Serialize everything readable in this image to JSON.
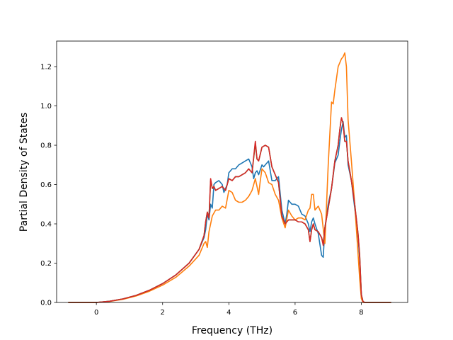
{
  "chart_data": {
    "type": "line",
    "title": "",
    "xlabel": "Frequency (THz)",
    "ylabel": "Partial Density of States",
    "xlim": [
      -1.2,
      9.4
    ],
    "ylim": [
      0.0,
      1.33
    ],
    "xticks": [
      0,
      2,
      4,
      6,
      8
    ],
    "xtick_labels": [
      "0",
      "2",
      "4",
      "6",
      "8"
    ],
    "yticks": [
      0.0,
      0.2,
      0.4,
      0.6,
      0.8,
      1.0,
      1.2
    ],
    "ytick_labels": [
      "0.0",
      "0.2",
      "0.4",
      "0.6",
      "0.8",
      "1.0",
      "1.2"
    ],
    "grid": false,
    "legend": "none",
    "series": [
      {
        "color": "#1f77b4",
        "points": [
          [
            -0.85,
            0
          ],
          [
            0,
            0
          ],
          [
            0.4,
            0.006
          ],
          [
            0.8,
            0.018
          ],
          [
            1.2,
            0.036
          ],
          [
            1.6,
            0.062
          ],
          [
            2.0,
            0.096
          ],
          [
            2.4,
            0.14
          ],
          [
            2.8,
            0.2
          ],
          [
            3.1,
            0.27
          ],
          [
            3.25,
            0.33
          ],
          [
            3.3,
            0.37
          ],
          [
            3.35,
            0.45
          ],
          [
            3.4,
            0.42
          ],
          [
            3.45,
            0.5
          ],
          [
            3.5,
            0.48
          ],
          [
            3.55,
            0.6
          ],
          [
            3.6,
            0.61
          ],
          [
            3.7,
            0.62
          ],
          [
            3.8,
            0.6
          ],
          [
            3.85,
            0.56
          ],
          [
            3.9,
            0.58
          ],
          [
            3.95,
            0.6
          ],
          [
            4.0,
            0.66
          ],
          [
            4.1,
            0.68
          ],
          [
            4.2,
            0.68
          ],
          [
            4.3,
            0.7
          ],
          [
            4.4,
            0.71
          ],
          [
            4.5,
            0.72
          ],
          [
            4.6,
            0.73
          ],
          [
            4.7,
            0.69
          ],
          [
            4.75,
            0.63
          ],
          [
            4.8,
            0.66
          ],
          [
            4.85,
            0.67
          ],
          [
            4.9,
            0.65
          ],
          [
            5.0,
            0.7
          ],
          [
            5.05,
            0.69
          ],
          [
            5.1,
            0.7
          ],
          [
            5.2,
            0.72
          ],
          [
            5.3,
            0.62
          ],
          [
            5.4,
            0.62
          ],
          [
            5.5,
            0.64
          ],
          [
            5.6,
            0.47
          ],
          [
            5.7,
            0.4
          ],
          [
            5.75,
            0.45
          ],
          [
            5.8,
            0.52
          ],
          [
            5.9,
            0.5
          ],
          [
            6.0,
            0.5
          ],
          [
            6.1,
            0.49
          ],
          [
            6.2,
            0.45
          ],
          [
            6.3,
            0.44
          ],
          [
            6.4,
            0.4
          ],
          [
            6.45,
            0.36
          ],
          [
            6.5,
            0.41
          ],
          [
            6.55,
            0.43
          ],
          [
            6.6,
            0.4
          ],
          [
            6.7,
            0.35
          ],
          [
            6.8,
            0.24
          ],
          [
            6.85,
            0.23
          ],
          [
            6.9,
            0.38
          ],
          [
            7.0,
            0.5
          ],
          [
            7.1,
            0.58
          ],
          [
            7.2,
            0.71
          ],
          [
            7.3,
            0.75
          ],
          [
            7.35,
            0.82
          ],
          [
            7.4,
            0.88
          ],
          [
            7.45,
            0.92
          ],
          [
            7.5,
            0.84
          ],
          [
            7.55,
            0.85
          ],
          [
            7.6,
            0.7
          ],
          [
            7.7,
            0.62
          ],
          [
            7.8,
            0.48
          ],
          [
            7.9,
            0.34
          ],
          [
            7.95,
            0.22
          ],
          [
            8.0,
            0.04
          ],
          [
            8.05,
            0.005
          ],
          [
            8.1,
            0
          ],
          [
            8.9,
            0
          ]
        ]
      },
      {
        "color": "#ff7f0e",
        "points": [
          [
            -0.85,
            0
          ],
          [
            0,
            0
          ],
          [
            0.4,
            0.005
          ],
          [
            0.8,
            0.016
          ],
          [
            1.2,
            0.033
          ],
          [
            1.6,
            0.057
          ],
          [
            2.0,
            0.088
          ],
          [
            2.4,
            0.128
          ],
          [
            2.8,
            0.185
          ],
          [
            3.1,
            0.24
          ],
          [
            3.25,
            0.3
          ],
          [
            3.3,
            0.31
          ],
          [
            3.35,
            0.28
          ],
          [
            3.4,
            0.36
          ],
          [
            3.5,
            0.44
          ],
          [
            3.6,
            0.47
          ],
          [
            3.7,
            0.47
          ],
          [
            3.8,
            0.49
          ],
          [
            3.9,
            0.48
          ],
          [
            4.0,
            0.57
          ],
          [
            4.1,
            0.56
          ],
          [
            4.2,
            0.52
          ],
          [
            4.3,
            0.51
          ],
          [
            4.4,
            0.51
          ],
          [
            4.5,
            0.52
          ],
          [
            4.6,
            0.54
          ],
          [
            4.7,
            0.57
          ],
          [
            4.8,
            0.63
          ],
          [
            4.85,
            0.59
          ],
          [
            4.9,
            0.55
          ],
          [
            4.95,
            0.62
          ],
          [
            5.0,
            0.68
          ],
          [
            5.1,
            0.66
          ],
          [
            5.2,
            0.61
          ],
          [
            5.3,
            0.6
          ],
          [
            5.4,
            0.55
          ],
          [
            5.5,
            0.52
          ],
          [
            5.6,
            0.43
          ],
          [
            5.7,
            0.38
          ],
          [
            5.8,
            0.47
          ],
          [
            5.9,
            0.44
          ],
          [
            6.0,
            0.42
          ],
          [
            6.1,
            0.43
          ],
          [
            6.2,
            0.43
          ],
          [
            6.3,
            0.42
          ],
          [
            6.4,
            0.47
          ],
          [
            6.45,
            0.48
          ],
          [
            6.5,
            0.55
          ],
          [
            6.55,
            0.55
          ],
          [
            6.6,
            0.47
          ],
          [
            6.7,
            0.49
          ],
          [
            6.8,
            0.45
          ],
          [
            6.9,
            0.3
          ],
          [
            7.0,
            0.7
          ],
          [
            7.1,
            1.02
          ],
          [
            7.15,
            1.01
          ],
          [
            7.2,
            1.08
          ],
          [
            7.3,
            1.2
          ],
          [
            7.4,
            1.24
          ],
          [
            7.45,
            1.25
          ],
          [
            7.5,
            1.27
          ],
          [
            7.55,
            1.2
          ],
          [
            7.6,
            0.93
          ],
          [
            7.7,
            0.72
          ],
          [
            7.8,
            0.5
          ],
          [
            7.9,
            0.25
          ],
          [
            7.95,
            0.12
          ],
          [
            8.0,
            0.02
          ],
          [
            8.05,
            0
          ],
          [
            8.9,
            0
          ]
        ]
      },
      {
        "color": "#2ca02c",
        "points": [
          [
            -0.85,
            0
          ],
          [
            0,
            0
          ],
          [
            0.4,
            0.006
          ],
          [
            0.8,
            0.018
          ],
          [
            1.2,
            0.036
          ],
          [
            1.6,
            0.062
          ],
          [
            2.0,
            0.096
          ],
          [
            2.4,
            0.14
          ],
          [
            2.8,
            0.2
          ],
          [
            3.1,
            0.27
          ],
          [
            3.25,
            0.34
          ],
          [
            3.3,
            0.41
          ],
          [
            3.35,
            0.46
          ],
          [
            3.4,
            0.43
          ],
          [
            3.45,
            0.62
          ],
          [
            3.5,
            0.58
          ],
          [
            3.55,
            0.59
          ],
          [
            3.6,
            0.57
          ],
          [
            3.7,
            0.58
          ],
          [
            3.8,
            0.59
          ],
          [
            3.9,
            0.57
          ],
          [
            4.0,
            0.63
          ],
          [
            4.1,
            0.62
          ],
          [
            4.2,
            0.64
          ],
          [
            4.3,
            0.64
          ],
          [
            4.4,
            0.65
          ],
          [
            4.5,
            0.66
          ],
          [
            4.6,
            0.68
          ],
          [
            4.7,
            0.66
          ],
          [
            4.8,
            0.81
          ],
          [
            4.85,
            0.73
          ],
          [
            4.9,
            0.72
          ],
          [
            5.0,
            0.79
          ],
          [
            5.1,
            0.8
          ],
          [
            5.2,
            0.79
          ],
          [
            5.3,
            0.69
          ],
          [
            5.4,
            0.65
          ],
          [
            5.5,
            0.61
          ],
          [
            5.6,
            0.44
          ],
          [
            5.7,
            0.4
          ],
          [
            5.8,
            0.42
          ],
          [
            5.9,
            0.42
          ],
          [
            6.0,
            0.42
          ],
          [
            6.1,
            0.41
          ],
          [
            6.2,
            0.41
          ],
          [
            6.3,
            0.4
          ],
          [
            6.4,
            0.37
          ],
          [
            6.45,
            0.31
          ],
          [
            6.5,
            0.37
          ],
          [
            6.55,
            0.4
          ],
          [
            6.6,
            0.37
          ],
          [
            6.7,
            0.36
          ],
          [
            6.8,
            0.33
          ],
          [
            6.85,
            0.3
          ],
          [
            6.9,
            0.38
          ],
          [
            7.0,
            0.48
          ],
          [
            7.1,
            0.58
          ],
          [
            7.2,
            0.72
          ],
          [
            7.3,
            0.8
          ],
          [
            7.35,
            0.88
          ],
          [
            7.4,
            0.94
          ],
          [
            7.45,
            0.91
          ],
          [
            7.5,
            0.82
          ],
          [
            7.55,
            0.82
          ],
          [
            7.6,
            0.72
          ],
          [
            7.7,
            0.62
          ],
          [
            7.8,
            0.5
          ],
          [
            7.9,
            0.35
          ],
          [
            7.95,
            0.24
          ],
          [
            8.0,
            0.04
          ],
          [
            8.05,
            0.005
          ],
          [
            8.1,
            0
          ],
          [
            8.9,
            0
          ]
        ]
      },
      {
        "color": "#d62728",
        "points": [
          [
            -0.85,
            0
          ],
          [
            0,
            0
          ],
          [
            0.4,
            0.006
          ],
          [
            0.8,
            0.018
          ],
          [
            1.2,
            0.036
          ],
          [
            1.6,
            0.062
          ],
          [
            2.0,
            0.096
          ],
          [
            2.4,
            0.14
          ],
          [
            2.8,
            0.2
          ],
          [
            3.1,
            0.27
          ],
          [
            3.25,
            0.34
          ],
          [
            3.3,
            0.41
          ],
          [
            3.35,
            0.46
          ],
          [
            3.4,
            0.43
          ],
          [
            3.45,
            0.63
          ],
          [
            3.5,
            0.58
          ],
          [
            3.55,
            0.59
          ],
          [
            3.6,
            0.57
          ],
          [
            3.7,
            0.58
          ],
          [
            3.8,
            0.59
          ],
          [
            3.9,
            0.57
          ],
          [
            4.0,
            0.63
          ],
          [
            4.1,
            0.62
          ],
          [
            4.2,
            0.64
          ],
          [
            4.3,
            0.64
          ],
          [
            4.4,
            0.65
          ],
          [
            4.5,
            0.66
          ],
          [
            4.6,
            0.68
          ],
          [
            4.7,
            0.66
          ],
          [
            4.8,
            0.82
          ],
          [
            4.85,
            0.73
          ],
          [
            4.9,
            0.72
          ],
          [
            5.0,
            0.79
          ],
          [
            5.1,
            0.8
          ],
          [
            5.2,
            0.79
          ],
          [
            5.3,
            0.69
          ],
          [
            5.4,
            0.65
          ],
          [
            5.5,
            0.61
          ],
          [
            5.6,
            0.44
          ],
          [
            5.7,
            0.4
          ],
          [
            5.8,
            0.42
          ],
          [
            5.9,
            0.42
          ],
          [
            6.0,
            0.42
          ],
          [
            6.1,
            0.41
          ],
          [
            6.2,
            0.41
          ],
          [
            6.3,
            0.4
          ],
          [
            6.4,
            0.37
          ],
          [
            6.45,
            0.31
          ],
          [
            6.5,
            0.37
          ],
          [
            6.55,
            0.4
          ],
          [
            6.6,
            0.37
          ],
          [
            6.7,
            0.36
          ],
          [
            6.8,
            0.33
          ],
          [
            6.85,
            0.29
          ],
          [
            6.9,
            0.38
          ],
          [
            7.0,
            0.48
          ],
          [
            7.1,
            0.58
          ],
          [
            7.2,
            0.72
          ],
          [
            7.3,
            0.8
          ],
          [
            7.35,
            0.88
          ],
          [
            7.4,
            0.94
          ],
          [
            7.45,
            0.91
          ],
          [
            7.5,
            0.82
          ],
          [
            7.55,
            0.82
          ],
          [
            7.6,
            0.72
          ],
          [
            7.7,
            0.62
          ],
          [
            7.8,
            0.5
          ],
          [
            7.9,
            0.35
          ],
          [
            7.95,
            0.24
          ],
          [
            8.0,
            0.04
          ],
          [
            8.05,
            0.005
          ],
          [
            8.1,
            0
          ],
          [
            8.9,
            0
          ]
        ]
      }
    ]
  }
}
